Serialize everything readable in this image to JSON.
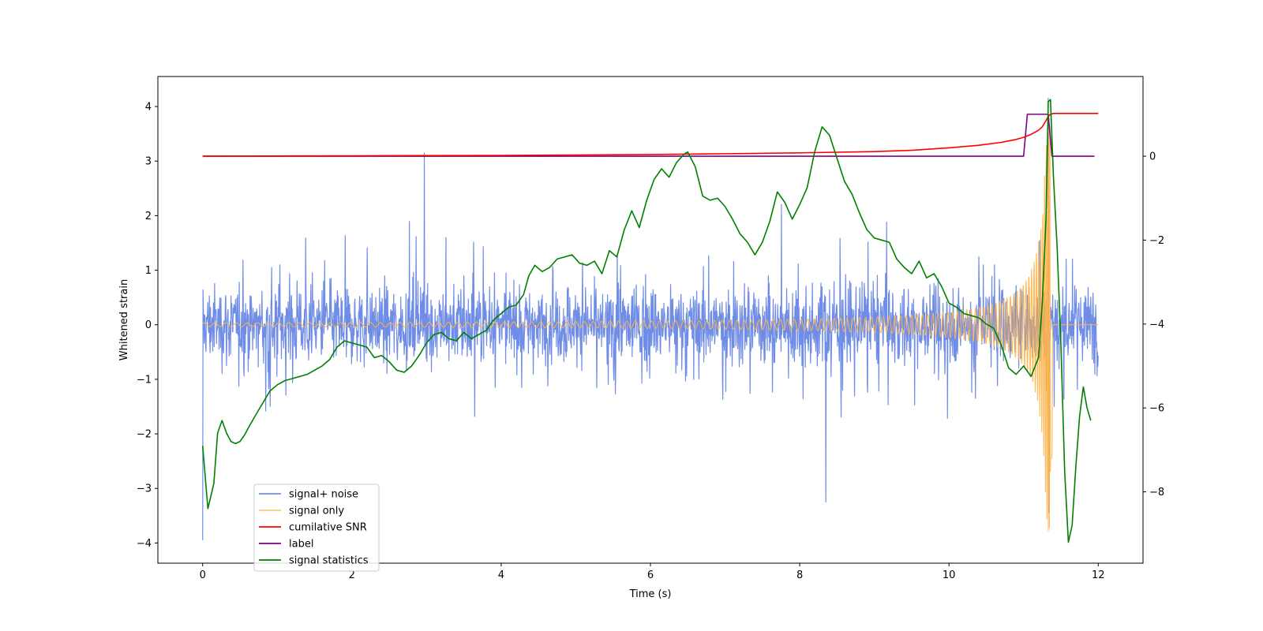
{
  "chart_data": {
    "type": "line",
    "title": "",
    "xlabel": "Time (s)",
    "ylabel": "Whitened strain",
    "xlim": [
      -0.6,
      12.6
    ],
    "ylim": [
      -4.37,
      4.55
    ],
    "y2lim": [
      -9.7,
      1.9
    ],
    "x_ticks": [
      0,
      2,
      4,
      6,
      8,
      10,
      12
    ],
    "x_tick_labels": [
      "0",
      "2",
      "4",
      "6",
      "8",
      "10",
      "12"
    ],
    "y_ticks": [
      4,
      3,
      2,
      1,
      0,
      -1,
      -2,
      -3,
      -4
    ],
    "y_tick_labels": [
      "4",
      "3",
      "2",
      "1",
      "0",
      "−1",
      "−2",
      "−3",
      "−4"
    ],
    "y2_ticks": [
      0,
      -2,
      -4,
      -6,
      -8
    ],
    "y2_tick_labels": [
      "0",
      "−2",
      "−4",
      "−6",
      "−8"
    ],
    "grid": false,
    "legend_position": "lower-left",
    "series": [
      {
        "name": "signal+ noise",
        "color": "#6f8de6",
        "axis": "left",
        "kind": "noise",
        "x_range": [
          0,
          12
        ],
        "typical_range": [
          -1.8,
          2.2
        ],
        "extremes": [
          [
            0.0,
            -3.95
          ],
          [
            2.97,
            3.15
          ],
          [
            8.35,
            -3.25
          ],
          [
            11.33,
            4.15
          ],
          [
            11.34,
            -3.45
          ]
        ]
      },
      {
        "name": "signal only",
        "color": "#ffb347",
        "axis": "left",
        "kind": "chirp",
        "x_range": [
          0,
          11.38
        ],
        "peak_time": 11.33,
        "peak_amplitude": 3.8
      },
      {
        "name": "cumilative SNR",
        "color": "#ff0000",
        "axis": "right",
        "x": [
          0,
          2,
          4,
          6,
          7,
          8,
          9,
          9.5,
          10,
          10.4,
          10.7,
          10.9,
          11.0,
          11.1,
          11.2,
          11.25,
          11.3,
          11.33,
          11.36,
          11.4,
          12.0
        ],
        "y": [
          0.0,
          0.01,
          0.02,
          0.04,
          0.06,
          0.08,
          0.11,
          0.14,
          0.2,
          0.26,
          0.33,
          0.4,
          0.45,
          0.52,
          0.62,
          0.7,
          0.85,
          0.95,
          1.0,
          1.02,
          1.02
        ]
      },
      {
        "name": "label",
        "color": "#800080",
        "axis": "right",
        "x": [
          0,
          11.0,
          11.05,
          11.33,
          11.38,
          11.95
        ],
        "y": [
          0.0,
          0.0,
          1.0,
          1.0,
          0.0,
          0.0
        ]
      },
      {
        "name": "signal statistics",
        "color": "#008000",
        "axis": "right",
        "x": [
          0.0,
          0.07,
          0.15,
          0.2,
          0.26,
          0.32,
          0.38,
          0.44,
          0.5,
          0.56,
          0.62,
          0.7,
          0.8,
          0.9,
          1.0,
          1.1,
          1.2,
          1.3,
          1.4,
          1.5,
          1.6,
          1.7,
          1.8,
          1.9,
          2.0,
          2.1,
          2.2,
          2.3,
          2.4,
          2.5,
          2.6,
          2.7,
          2.8,
          2.9,
          3.0,
          3.1,
          3.2,
          3.3,
          3.4,
          3.5,
          3.6,
          3.7,
          3.8,
          3.9,
          4.0,
          4.1,
          4.2,
          4.3,
          4.37,
          4.45,
          4.55,
          4.65,
          4.75,
          4.85,
          4.95,
          5.05,
          5.15,
          5.25,
          5.35,
          5.45,
          5.55,
          5.65,
          5.75,
          5.85,
          5.95,
          6.05,
          6.15,
          6.25,
          6.35,
          6.45,
          6.5,
          6.6,
          6.7,
          6.8,
          6.9,
          7.0,
          7.1,
          7.2,
          7.3,
          7.4,
          7.5,
          7.6,
          7.7,
          7.8,
          7.9,
          8.0,
          8.1,
          8.2,
          8.3,
          8.4,
          8.5,
          8.6,
          8.7,
          8.8,
          8.9,
          9.0,
          9.1,
          9.2,
          9.3,
          9.4,
          9.5,
          9.6,
          9.7,
          9.8,
          9.9,
          10.0,
          10.1,
          10.2,
          10.3,
          10.4,
          10.5,
          10.6,
          10.7,
          10.8,
          10.9,
          11.0,
          11.1,
          11.2,
          11.25,
          11.3,
          11.33,
          11.36,
          11.4,
          11.45,
          11.5,
          11.55,
          11.6,
          11.65,
          11.7,
          11.75,
          11.8,
          11.85,
          11.9
        ],
        "y": [
          -6.9,
          -8.4,
          -7.8,
          -6.6,
          -6.3,
          -6.6,
          -6.8,
          -6.85,
          -6.8,
          -6.65,
          -6.45,
          -6.2,
          -5.9,
          -5.6,
          -5.45,
          -5.35,
          -5.3,
          -5.25,
          -5.2,
          -5.1,
          -5.0,
          -4.85,
          -4.55,
          -4.4,
          -4.45,
          -4.5,
          -4.55,
          -4.8,
          -4.75,
          -4.9,
          -5.1,
          -5.15,
          -5.0,
          -4.75,
          -4.45,
          -4.25,
          -4.2,
          -4.35,
          -4.4,
          -4.2,
          -4.35,
          -4.25,
          -4.15,
          -3.9,
          -3.75,
          -3.6,
          -3.55,
          -3.3,
          -2.85,
          -2.6,
          -2.75,
          -2.65,
          -2.45,
          -2.4,
          -2.35,
          -2.55,
          -2.6,
          -2.5,
          -2.8,
          -2.25,
          -2.4,
          -1.75,
          -1.3,
          -1.7,
          -1.05,
          -0.55,
          -0.3,
          -0.5,
          -0.15,
          0.05,
          0.1,
          -0.25,
          -0.95,
          -1.05,
          -1.0,
          -1.2,
          -1.5,
          -1.85,
          -2.05,
          -2.35,
          -2.05,
          -1.55,
          -0.85,
          -1.1,
          -1.5,
          -1.15,
          -0.75,
          0.1,
          0.7,
          0.5,
          -0.05,
          -0.6,
          -0.9,
          -1.35,
          -1.75,
          -1.95,
          -2.0,
          -2.05,
          -2.45,
          -2.65,
          -2.8,
          -2.5,
          -2.9,
          -2.8,
          -3.1,
          -3.5,
          -3.6,
          -3.75,
          -3.8,
          -3.85,
          -4.0,
          -4.1,
          -4.5,
          -5.05,
          -5.2,
          -5.0,
          -5.25,
          -4.8,
          -3.5,
          -1.5,
          1.3,
          1.35,
          -0.5,
          -2.2,
          -4.5,
          -7.5,
          -9.2,
          -8.8,
          -7.4,
          -6.2,
          -5.5,
          -6.0,
          -6.3
        ]
      }
    ]
  }
}
